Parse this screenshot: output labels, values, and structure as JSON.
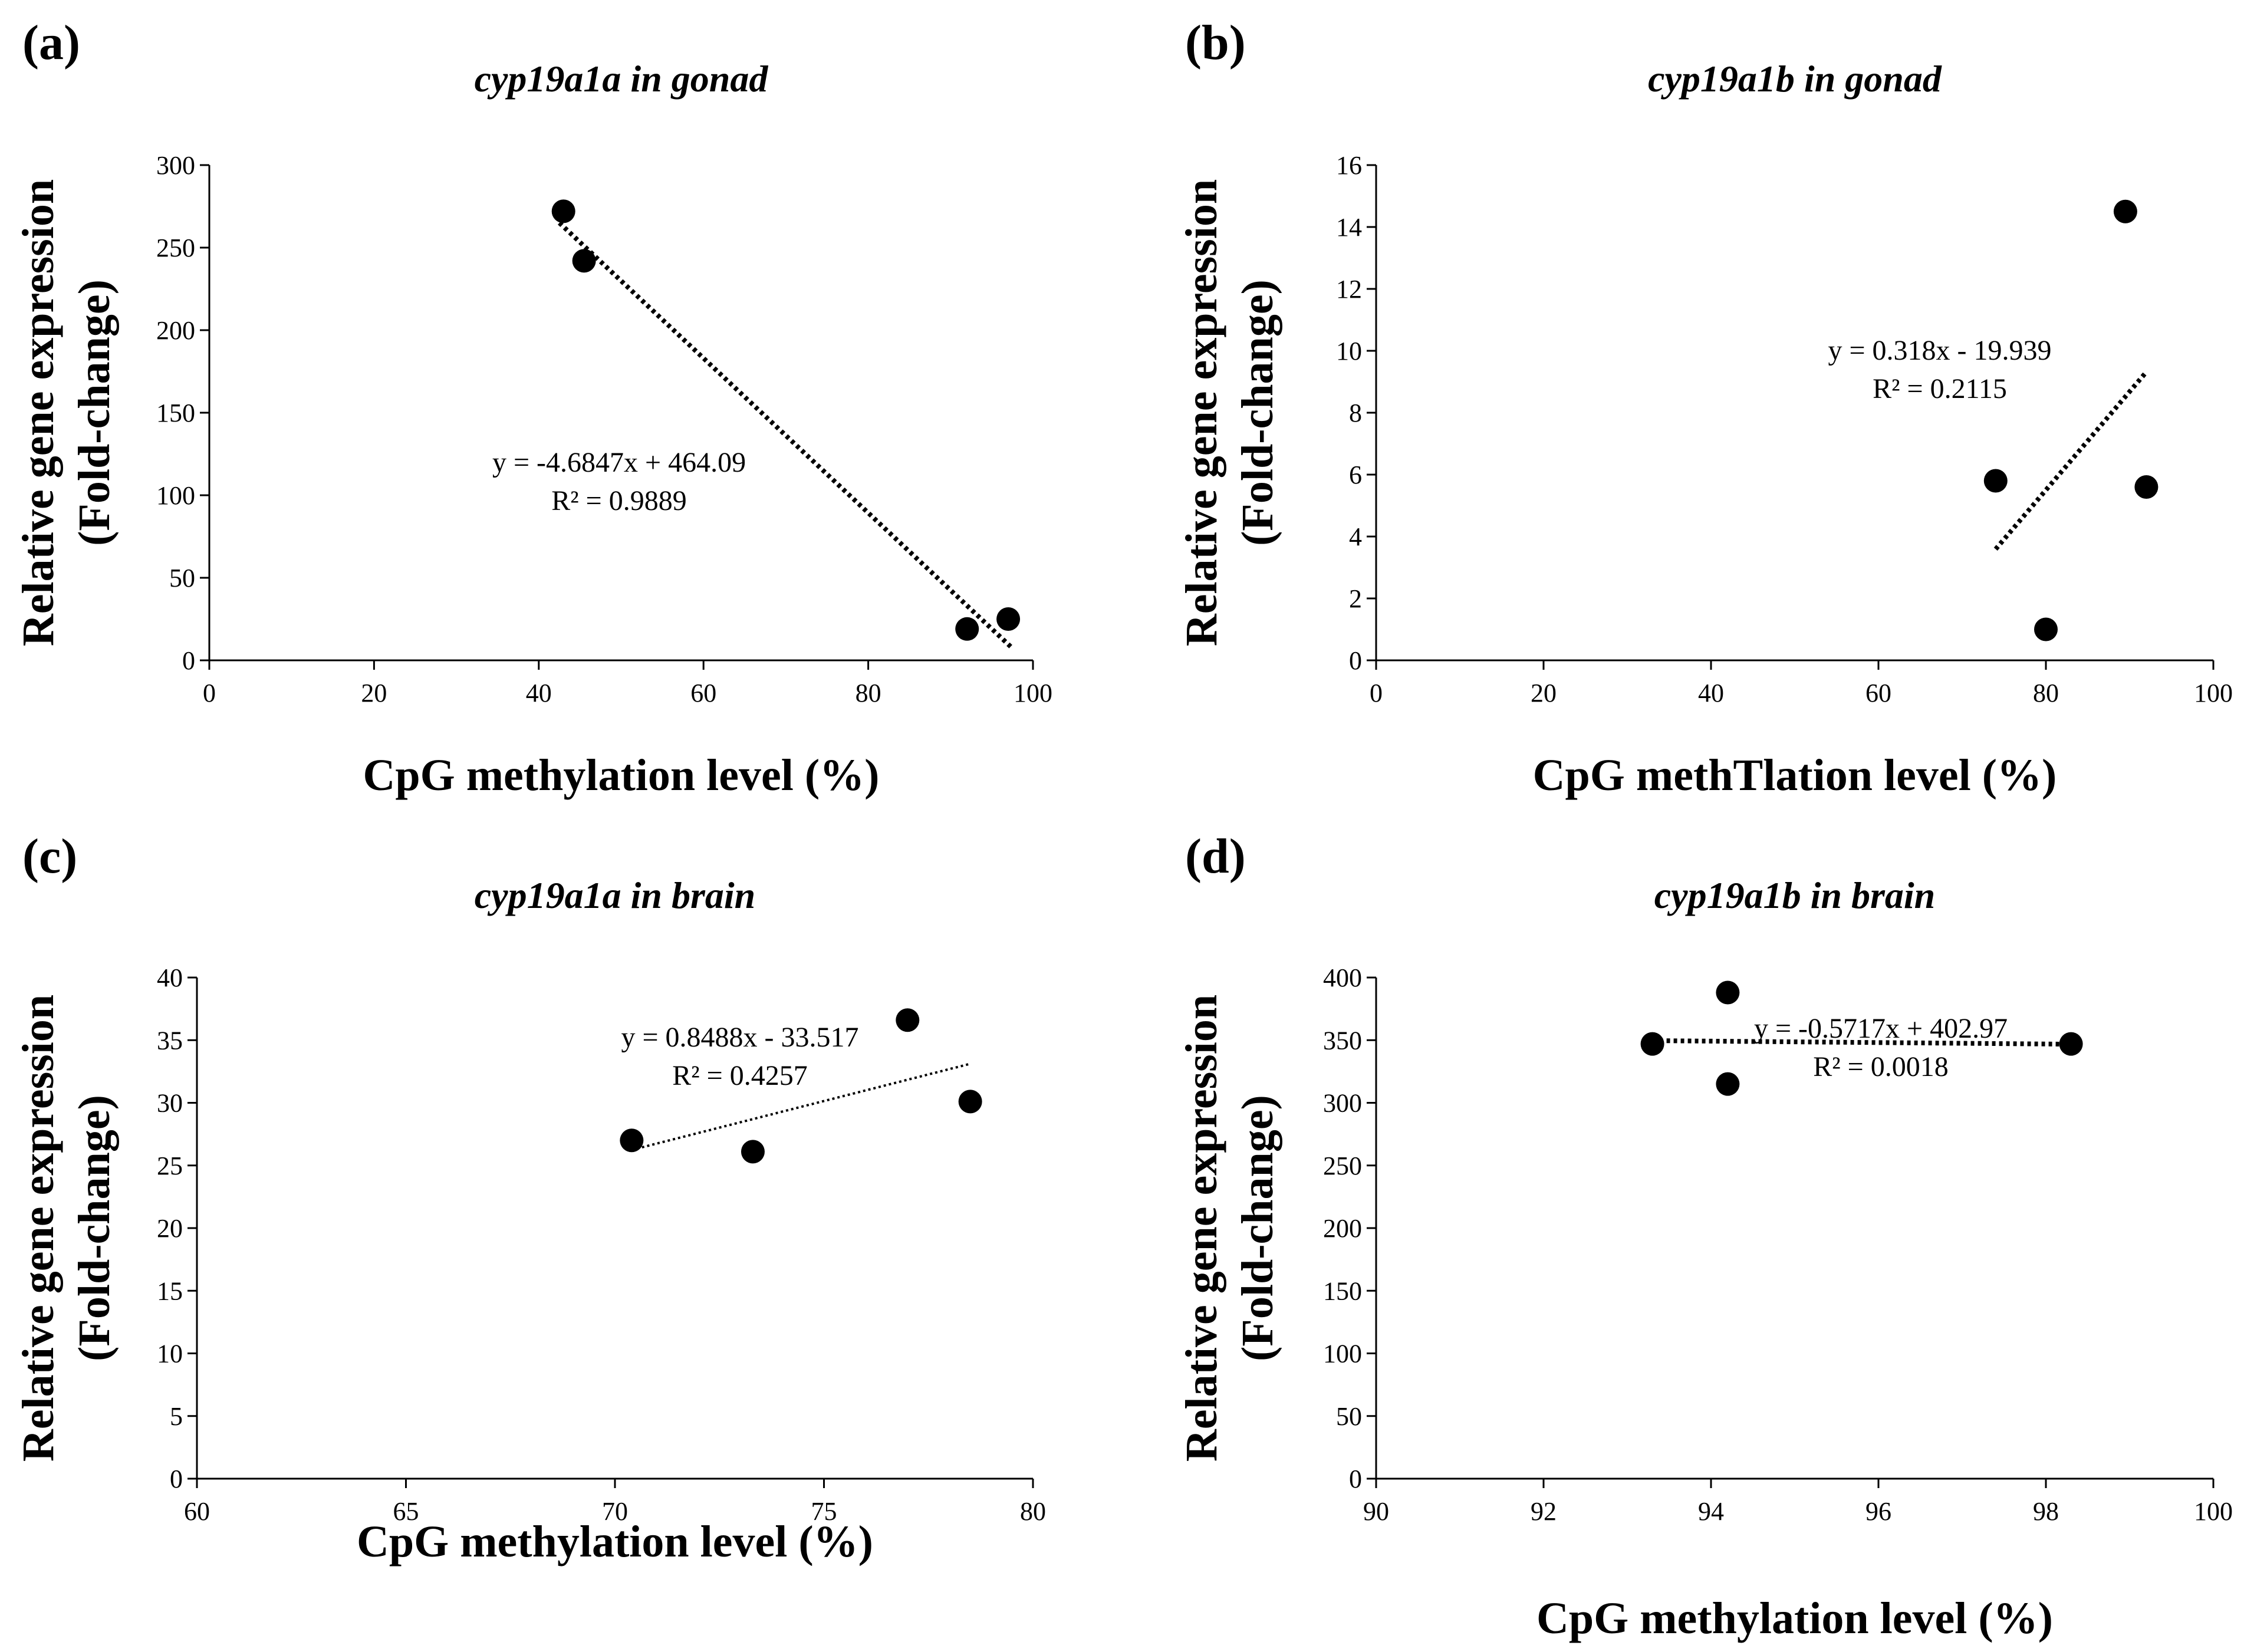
{
  "chart_data": [
    {
      "panel": "(a)",
      "type": "scatter",
      "title": "cyp19a1a in gonad",
      "xlabel": "CpG methylation level (%)",
      "ylabel": [
        "Relative gene expression",
        "(Fold-change)"
      ],
      "xlim": [
        0,
        100
      ],
      "ylim": [
        0,
        300
      ],
      "xticks": [
        0,
        20,
        40,
        60,
        80,
        100
      ],
      "yticks": [
        0,
        50,
        100,
        150,
        200,
        250,
        300
      ],
      "points": [
        {
          "x": 43.0,
          "y": 272
        },
        {
          "x": 45.5,
          "y": 242
        },
        {
          "x": 92.0,
          "y": 19
        },
        {
          "x": 97.0,
          "y": 25
        }
      ],
      "trendline": {
        "x0": 42.5,
        "x1": 97.5,
        "slope": -4.6847,
        "intercept": 464.09,
        "style": "dotted-bold"
      },
      "equation": "y = -4.6847x + 464.09",
      "r2": "R² = 0.9889"
    },
    {
      "panel": "(b)",
      "type": "scatter",
      "title": "cyp19a1b in gonad",
      "xlabel": "CpG methTlation level (%)",
      "ylabel": [
        "Relative gene expression",
        "(Fold-change)"
      ],
      "xlim": [
        0,
        100
      ],
      "ylim": [
        0,
        16
      ],
      "xticks": [
        0,
        20,
        40,
        60,
        80,
        100
      ],
      "yticks": [
        0,
        2,
        4,
        6,
        8,
        10,
        12,
        14,
        16
      ],
      "points": [
        {
          "x": 74.0,
          "y": 5.8
        },
        {
          "x": 80.0,
          "y": 1.0
        },
        {
          "x": 89.5,
          "y": 14.5
        },
        {
          "x": 92.0,
          "y": 5.6
        }
      ],
      "trendline": {
        "x0": 74.0,
        "x1": 92.0,
        "slope": 0.318,
        "intercept": -19.939,
        "style": "dotted-bold"
      },
      "equation": "y = 0.318x - 19.939",
      "r2": "R² = 0.2115"
    },
    {
      "panel": "(c)",
      "type": "scatter",
      "title": "cyp19a1a in brain",
      "xlabel": "CpG methylation level (%)",
      "ylabel": [
        "Relative gene expression",
        "(Fold-change)"
      ],
      "xlim": [
        60,
        80
      ],
      "ylim": [
        0,
        40
      ],
      "xticks": [
        60,
        65,
        70,
        75,
        80
      ],
      "yticks": [
        0,
        5,
        10,
        15,
        20,
        25,
        30,
        35,
        40
      ],
      "points": [
        {
          "x": 70.4,
          "y": 27.0
        },
        {
          "x": 73.3,
          "y": 26.1
        },
        {
          "x": 77.0,
          "y": 36.6
        },
        {
          "x": 78.5,
          "y": 30.1
        }
      ],
      "trendline": {
        "x0": 70.4,
        "x1": 78.5,
        "slope": 0.8488,
        "intercept": -33.517,
        "style": "dotted-thin"
      },
      "equation": "y = 0.8488x - 33.517",
      "r2": "R² = 0.4257"
    },
    {
      "panel": "(d)",
      "type": "scatter",
      "title": "cyp19a1b in brain",
      "xlabel": "CpG methylation level (%)",
      "ylabel": [
        "Relative gene expression",
        "(Fold-change)"
      ],
      "xlim": [
        90,
        100
      ],
      "ylim": [
        0,
        400
      ],
      "xticks": [
        90,
        92,
        94,
        96,
        98,
        100
      ],
      "yticks": [
        0,
        50,
        100,
        150,
        200,
        250,
        300,
        350,
        400
      ],
      "points": [
        {
          "x": 93.3,
          "y": 347
        },
        {
          "x": 94.2,
          "y": 388
        },
        {
          "x": 94.2,
          "y": 315
        },
        {
          "x": 98.3,
          "y": 347
        }
      ],
      "trendline": {
        "x0": 93.3,
        "x1": 98.3,
        "slope": -0.5717,
        "intercept": 402.97,
        "style": "dotted-bold"
      },
      "equation": "y = -0.5717x + 402.97",
      "r2": "R² = 0.0018"
    }
  ]
}
